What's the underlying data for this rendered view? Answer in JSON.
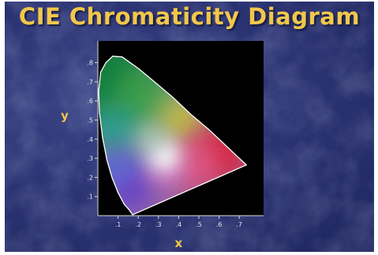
{
  "title": "CIE Chromaticity Diagram",
  "chart_data": {
    "type": "diagram",
    "xlabel": "x",
    "ylabel": "y",
    "xlim": [
      0,
      0.8
    ],
    "ylim": [
      0,
      0.9
    ],
    "x_ticks": [
      ".1",
      ".2",
      ".3",
      ".4",
      ".5",
      ".6",
      ".7"
    ],
    "y_ticks": [
      ".1",
      ".2",
      ".3",
      ".4",
      ".5",
      ".6",
      ".7",
      ".8"
    ],
    "spectral_locus": [
      [
        0.735,
        0.265
      ],
      [
        0.69,
        0.31
      ],
      [
        0.63,
        0.37
      ],
      [
        0.55,
        0.45
      ],
      [
        0.46,
        0.53
      ],
      [
        0.37,
        0.62
      ],
      [
        0.28,
        0.7
      ],
      [
        0.2,
        0.77
      ],
      [
        0.12,
        0.83
      ],
      [
        0.074,
        0.834
      ],
      [
        0.04,
        0.8
      ],
      [
        0.014,
        0.75
      ],
      [
        0.004,
        0.65
      ],
      [
        0.008,
        0.54
      ],
      [
        0.023,
        0.41
      ],
      [
        0.045,
        0.29
      ],
      [
        0.07,
        0.2
      ],
      [
        0.1,
        0.12
      ],
      [
        0.13,
        0.06
      ],
      [
        0.155,
        0.03
      ],
      [
        0.172,
        0.005
      ]
    ],
    "white_point": [
      0.33,
      0.33
    ],
    "colors": {
      "background": "#2c3474",
      "title": "#f2c74a",
      "plot_area": "#000000",
      "outline": "#ffffff"
    }
  }
}
